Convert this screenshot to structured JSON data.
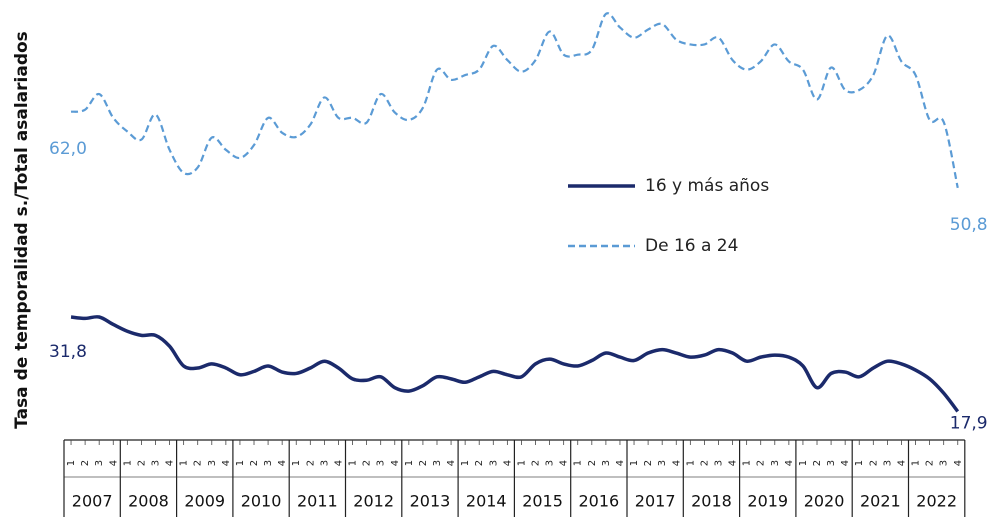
{
  "chart_data": {
    "type": "line",
    "y_axis_label": "Tasa de temporalidad s./Total asalariados",
    "years": [
      "2007",
      "2008",
      "2009",
      "2010",
      "2011",
      "2012",
      "2013",
      "2014",
      "2015",
      "2016",
      "2017",
      "2018",
      "2019",
      "2020",
      "2021",
      "2022"
    ],
    "categories": [
      "1",
      "2",
      "3",
      "4",
      "1",
      "2",
      "3",
      "4",
      "1",
      "2",
      "3",
      "4",
      "1",
      "2",
      "3",
      "4",
      "1",
      "2",
      "3",
      "4",
      "1",
      "2",
      "3",
      "4",
      "1",
      "2",
      "3",
      "4",
      "1",
      "2",
      "3",
      "4",
      "1",
      "2",
      "3",
      "4",
      "1",
      "2",
      "3",
      "4",
      "1",
      "2",
      "3",
      "4",
      "1",
      "2",
      "3",
      "4",
      "1",
      "2",
      "3",
      "4",
      "1",
      "2",
      "3",
      "4",
      "1",
      "2",
      "3",
      "4",
      "1",
      "2",
      "3",
      "4"
    ],
    "ylim": [
      14,
      78
    ],
    "legend": "center-right",
    "series": [
      {
        "name": "16 y más años",
        "color": "#1b2a6b",
        "dash": false,
        "values": [
          31.8,
          31.6,
          31.8,
          30.7,
          29.7,
          29.1,
          29.1,
          27.5,
          24.6,
          24.3,
          24.9,
          24.3,
          23.3,
          23.8,
          24.6,
          23.7,
          23.5,
          24.3,
          25.3,
          24.3,
          22.7,
          22.5,
          23.0,
          21.4,
          20.9,
          21.7,
          23.0,
          22.7,
          22.2,
          23.0,
          23.8,
          23.3,
          23.0,
          24.9,
          25.6,
          24.9,
          24.6,
          25.4,
          26.5,
          25.9,
          25.4,
          26.5,
          27.0,
          26.5,
          25.9,
          26.2,
          27.0,
          26.5,
          25.3,
          25.9,
          26.2,
          25.9,
          24.6,
          21.4,
          23.5,
          23.7,
          23.0,
          24.3,
          25.3,
          24.9,
          24.0,
          22.7,
          20.6,
          17.9
        ],
        "value_labels": [
          "31,8",
          null,
          null,
          null,
          null,
          null,
          null,
          null,
          null,
          null,
          null,
          null,
          null,
          null,
          null,
          null,
          null,
          null,
          null,
          null,
          null,
          null,
          null,
          null,
          null,
          null,
          null,
          null,
          null,
          null,
          null,
          null,
          null,
          null,
          null,
          null,
          null,
          null,
          null,
          null,
          null,
          null,
          null,
          null,
          null,
          null,
          null,
          null,
          null,
          null,
          null,
          null,
          null,
          null,
          null,
          null,
          null,
          null,
          null,
          null,
          null,
          null,
          null,
          "17,9"
        ]
      },
      {
        "name": "De 16 a 24",
        "color": "#5b9bd5",
        "dash": true,
        "values": [
          62.0,
          62.3,
          64.6,
          61.1,
          59.1,
          57.9,
          61.6,
          56.4,
          53.0,
          53.8,
          58.2,
          56.4,
          55.2,
          57.1,
          61.1,
          58.9,
          58.3,
          60.1,
          64.1,
          61.1,
          61.1,
          60.4,
          64.6,
          61.9,
          60.8,
          62.6,
          68.2,
          66.7,
          67.4,
          68.2,
          71.7,
          69.6,
          67.9,
          69.6,
          73.8,
          70.4,
          70.4,
          71.1,
          76.4,
          74.4,
          72.9,
          74.1,
          74.9,
          72.6,
          71.9,
          71.9,
          72.9,
          69.6,
          68.2,
          69.4,
          71.9,
          69.4,
          68.2,
          63.8,
          68.5,
          65.2,
          65.2,
          67.4,
          73.2,
          69.4,
          67.4,
          60.8,
          60.5,
          50.8
        ],
        "value_labels": [
          "62,0",
          null,
          null,
          null,
          null,
          null,
          null,
          null,
          null,
          null,
          null,
          null,
          null,
          null,
          null,
          null,
          null,
          null,
          null,
          null,
          null,
          null,
          null,
          null,
          null,
          null,
          null,
          null,
          null,
          null,
          null,
          null,
          null,
          null,
          null,
          null,
          null,
          null,
          null,
          null,
          null,
          null,
          null,
          null,
          null,
          null,
          null,
          null,
          null,
          null,
          null,
          null,
          null,
          null,
          null,
          null,
          null,
          null,
          null,
          null,
          null,
          null,
          null,
          "50,8"
        ]
      }
    ]
  }
}
